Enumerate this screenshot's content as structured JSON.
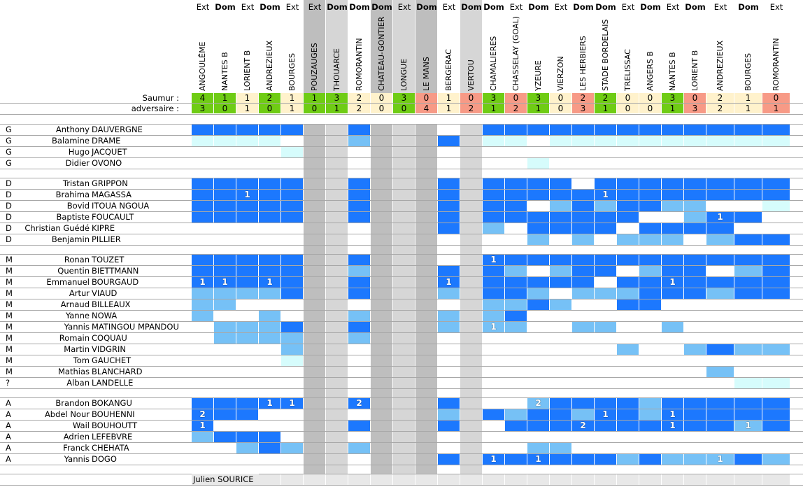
{
  "colors": {
    "starter": "#1c78fe",
    "substitute": "#76c1f6",
    "bench": "#d6fcfc",
    "absent": "#ffffff",
    "no_data_dark": "#bebebe",
    "no_data_light": "#d6d6d6",
    "win": "#6fcc14",
    "draw": "#fff2cc",
    "loss": "#f79a86",
    "coach_row": "#e8e8e8"
  },
  "score_labels": {
    "saumur": "Saumur :",
    "adversaire": "adversaire :"
  },
  "matches": [
    {
      "name": "ANGOULÊME",
      "venue": "Ext",
      "saumur": "4",
      "adversaire": "3",
      "shade": ""
    },
    {
      "name": "NANTES B",
      "venue": "Dom",
      "saumur": "1",
      "adversaire": "0",
      "shade": ""
    },
    {
      "name": "LORIENT B",
      "venue": "Ext",
      "saumur": "1",
      "adversaire": "1",
      "shade": ""
    },
    {
      "name": "ANDREZIEUX",
      "venue": "Dom",
      "saumur": "2",
      "adversaire": "0",
      "shade": ""
    },
    {
      "name": "BOURGES",
      "venue": "Ext",
      "saumur": "1",
      "adversaire": "1",
      "shade": ""
    },
    {
      "name": "POUZAUGES",
      "venue": "Ext",
      "saumur": "1",
      "adversaire": "0",
      "shade": "dark"
    },
    {
      "name": "THOUARCE",
      "venue": "Dom",
      "saumur": "3",
      "adversaire": "1",
      "shade": "light"
    },
    {
      "name": "ROMORANTIN",
      "venue": "Dom",
      "saumur": "2",
      "adversaire": "2",
      "shade": ""
    },
    {
      "name": "CHATEAU-GONTIER",
      "venue": "Dom",
      "saumur": "0",
      "adversaire": "0",
      "shade": "dark"
    },
    {
      "name": "LONGUE",
      "venue": "Ext",
      "saumur": "3",
      "adversaire": "0",
      "shade": "light"
    },
    {
      "name": "LE MANS",
      "venue": "Dom",
      "saumur": "0",
      "adversaire": "4",
      "shade": "dark"
    },
    {
      "name": "BERGERAC",
      "venue": "Ext",
      "saumur": "1",
      "adversaire": "1",
      "shade": ""
    },
    {
      "name": "VERTOU",
      "venue": "Dom",
      "saumur": "0",
      "adversaire": "2",
      "shade": "light"
    },
    {
      "name": "CHAMALIERES",
      "venue": "Dom",
      "saumur": "3",
      "adversaire": "1",
      "shade": ""
    },
    {
      "name": "CHASSELAY (GOAL)",
      "venue": "Ext",
      "saumur": "0",
      "adversaire": "2",
      "shade": ""
    },
    {
      "name": "YZEURE",
      "venue": "Dom",
      "saumur": "3",
      "adversaire": "1",
      "shade": ""
    },
    {
      "name": "VIERZON",
      "venue": "Ext",
      "saumur": "0",
      "adversaire": "0",
      "shade": ""
    },
    {
      "name": "LES HERBIERS",
      "venue": "Dom",
      "saumur": "2",
      "adversaire": "3",
      "shade": ""
    },
    {
      "name": "STADE BORDELAIS",
      "venue": "Dom",
      "saumur": "2",
      "adversaire": "1",
      "shade": ""
    },
    {
      "name": "TRELISSAC",
      "venue": "Ext",
      "saumur": "0",
      "adversaire": "0",
      "shade": ""
    },
    {
      "name": "ANGERS B",
      "venue": "Dom",
      "saumur": "0",
      "adversaire": "0",
      "shade": ""
    },
    {
      "name": "NANTES B",
      "venue": "Ext",
      "saumur": "3",
      "adversaire": "1",
      "shade": ""
    },
    {
      "name": "LORIENT B",
      "venue": "Dom",
      "saumur": "0",
      "adversaire": "3",
      "shade": ""
    },
    {
      "name": "ANDREZIEUX",
      "venue": "Ext",
      "saumur": "2",
      "adversaire": "2",
      "shade": ""
    },
    {
      "name": "BOURGES",
      "venue": "Dom",
      "saumur": "1",
      "adversaire": "1",
      "shade": ""
    },
    {
      "name": "ROMORANTIN",
      "venue": "Ext",
      "saumur": "0",
      "adversaire": "1",
      "shade": ""
    }
  ],
  "legend_codes": {
    "S": "starter",
    "s": "substitute",
    "b": "bench",
    ".": "absent",
    "-": "no data"
  },
  "groups": [
    {
      "players": [
        {
          "pos": "G",
          "first": "Anthony",
          "last": "DAUVERGNE",
          "cells": "SSSSS--S---.-SSSSSSSSSSSSS",
          "goals": {}
        },
        {
          "pos": "G",
          "first": "Balamine",
          "last": "DRAME",
          "cells": "bbbb.--s---S-bb.bbbbbbbbbb",
          "goals": {}
        },
        {
          "pos": "G",
          "first": "Hugo",
          "last": "JACQUET",
          "cells": "....b--.---.-.............",
          "goals": {}
        },
        {
          "pos": "G",
          "first": "Didier",
          "last": "OVONO",
          "cells": ".....--.---.-..b..........",
          "goals": {}
        }
      ]
    },
    {
      "players": [
        {
          "pos": "D",
          "first": "Tristan",
          "last": "GRIPPON",
          "cells": "SSSSS--S---S-SSSS.SSSSSSSS",
          "goals": {}
        },
        {
          "pos": "D",
          "first": "Brahima",
          "last": "MAGASSA",
          "cells": "SSSSS--S---S-SSSSSSSSSSSSS",
          "goals": {
            "2": "1",
            "18": "1"
          }
        },
        {
          "pos": "D",
          "first": "Bovid",
          "last": "ITOUA NGOUA",
          "cells": "SSSSS--S---S-SS.sSsSSss..b",
          "goals": {}
        },
        {
          "pos": "D",
          "first": "Baptiste",
          "last": "FOUCAULT",
          "cells": "SSSSS--S---S-SSSSSSS..sSS.",
          "goals": {
            "23": "1"
          }
        },
        {
          "pos": "D",
          "first": "Christian Guédé",
          "last": "KIPRE",
          "cells": ".....--.---S-s.SSSS.SSSS..",
          "goals": {}
        },
        {
          "pos": "D",
          "first": "Benjamin",
          "last": "PILLIER",
          "cells": ".....--.---.-..s.s.sss.sSS",
          "goals": {}
        }
      ]
    },
    {
      "players": [
        {
          "pos": "M",
          "first": "Ronan",
          "last": "TOUZET",
          "cells": "SSSSS--S---.-SSSSSSSSSSSSS",
          "goals": {
            "13": "1"
          }
        },
        {
          "pos": "M",
          "first": "Quentin",
          "last": "BIETTMANN",
          "cells": "SSSSS--s---S-Ss.sSS.sSS.sS",
          "goals": {}
        },
        {
          "pos": "M",
          "first": "Emmanuel",
          "last": "BOURGAUD",
          "cells": "SSSSS--S---S-SSSSS.SSSSSSS",
          "goals": {
            "0": "1",
            "1": "1",
            "3": "1",
            "11": "1",
            "21": "1"
          }
        },
        {
          "pos": "M",
          "first": "Artur",
          "last": "VIAUD",
          "cells": "ssssS--S---s-SSs.sssSSSsSS",
          "goals": {}
        },
        {
          "pos": "M",
          "first": "Arnaud",
          "last": "BILLEAUX",
          "cells": "ss...--.---.-ssSs..SS.....",
          "goals": {}
        },
        {
          "pos": "M",
          "first": "Yanne",
          "last": "NOWA",
          "cells": "s..s.--s---s-sS...........",
          "goals": {}
        },
        {
          "pos": "M",
          "first": "Yannis",
          "last": "MATINGOU MPANDOU",
          "cells": ".sssS--S---s-ss..ss..s....",
          "goals": {
            "13": "1"
          }
        },
        {
          "pos": "M",
          "first": "Romain",
          "last": "COQUAU",
          "cells": ".ssss--s---.-.............",
          "goals": {}
        },
        {
          "pos": "M",
          "first": "Martin",
          "last": "VIDGRIN",
          "cells": "....s--.---.-......s..sSss",
          "goals": {}
        },
        {
          "pos": "M",
          "first": "Tom",
          "last": "GAUCHET",
          "cells": "....b--.---.-.............",
          "goals": {}
        },
        {
          "pos": "M",
          "first": "Mathias",
          "last": "BLANCHARD",
          "cells": ".....--.---.-..........s..",
          "goals": {}
        },
        {
          "pos": "?",
          "first": "Alban",
          "last": "LANDELLE",
          "cells": ".....--.---.-...........bb",
          "goals": {}
        }
      ]
    },
    {
      "players": [
        {
          "pos": "A",
          "first": "Brandon",
          "last": "BOKANGU",
          "cells": "SSSSS--S---S-..sSSSSsSSSSS",
          "goals": {
            "3": "1",
            "4": "1",
            "7": "2",
            "15": "2"
          }
        },
        {
          "pos": "A",
          "first": "Abdel Nour",
          "last": "BOUHENNI",
          "cells": "SSS..--.---s-SsSSsSSsSSSSS",
          "goals": {
            "0": "2",
            "18": "1",
            "21": "1"
          }
        },
        {
          "pos": "A",
          "first": "Wail",
          "last": "BOUHOUTT",
          "cells": "S....--S---S-.SSSSSSSSSSsS",
          "goals": {
            "0": "1",
            "17": "2",
            "21": "1",
            "24": "1"
          }
        },
        {
          "pos": "A",
          "first": "Adrien",
          "last": "LEFEBVRE",
          "cells": "sSSS.--.---.-.............",
          "goals": {}
        },
        {
          "pos": "A",
          "first": "Franck",
          "last": "CHEHATA",
          "cells": "..sSs--s---.-..ss.........",
          "goals": {}
        },
        {
          "pos": "A",
          "first": "Yannis",
          "last": "DOGO",
          "cells": ".....--.---S-SSSSSSsSsssSs",
          "goals": {
            "13": "1",
            "15": "1",
            "23": "1"
          }
        }
      ]
    }
  ],
  "coach": {
    "name": "Julien SOURICE"
  }
}
